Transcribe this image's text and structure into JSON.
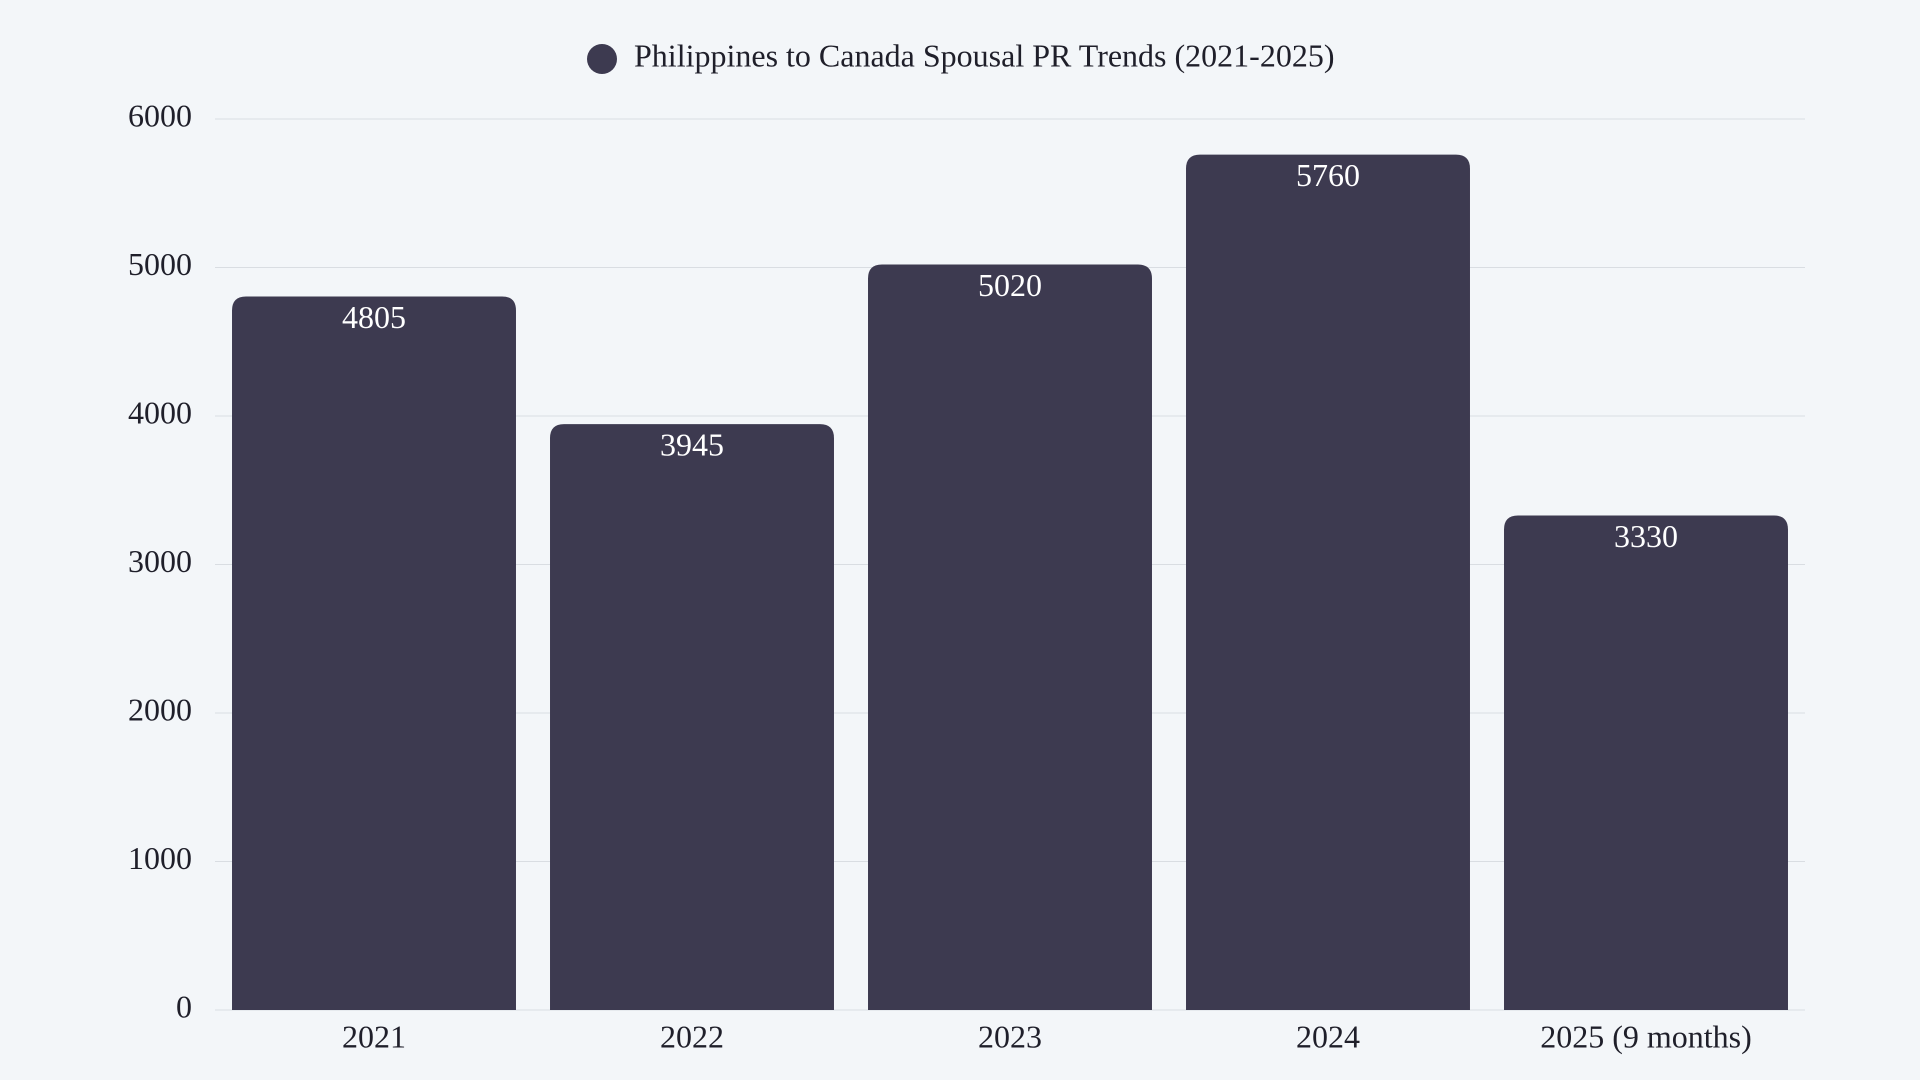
{
  "chart_data": {
    "type": "bar",
    "categories": [
      "2021",
      "2022",
      "2023",
      "2024",
      "2025 (9 months)"
    ],
    "series": [
      {
        "name": "Philippines to Canada Spousal PR Trends (2021-2025)",
        "color": "#3d3a50",
        "values": [
          4805,
          3945,
          5020,
          5760,
          3330
        ]
      }
    ],
    "ylim": [
      0,
      6000
    ],
    "yticks": [
      0,
      1000,
      2000,
      3000,
      4000,
      5000,
      6000
    ],
    "grid": true,
    "legend": "top"
  }
}
